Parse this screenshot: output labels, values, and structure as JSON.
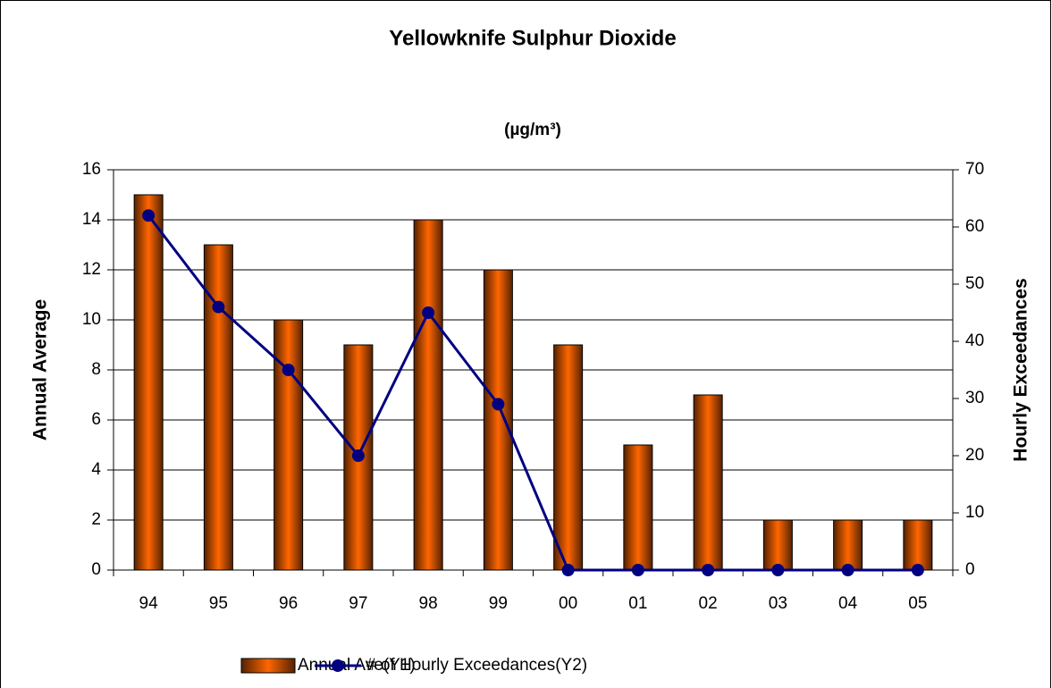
{
  "chart_data": {
    "type": "bar_line",
    "title": "Yellowknife Sulphur Dioxide",
    "subtitle": "(µg/m³)",
    "ylabel": "Annual Average",
    "y2label": "Hourly Exceedances",
    "categories": [
      "94",
      "95",
      "96",
      "97",
      "98",
      "99",
      "00",
      "01",
      "02",
      "03",
      "04",
      "05"
    ],
    "series": [
      {
        "name": "Annual Ave(Y1)",
        "type": "bar",
        "color": "#ff6600",
        "axis": "y",
        "values": [
          15,
          13,
          10,
          9,
          14,
          12,
          9,
          5,
          7,
          2,
          2,
          2
        ]
      },
      {
        "name": "# of Hourly Exceedances(Y2)",
        "type": "line",
        "color": "#000080",
        "axis": "y2",
        "values": [
          62,
          46,
          35,
          20,
          45,
          29,
          0,
          0,
          0,
          0,
          0,
          0
        ]
      }
    ],
    "ylim": [
      0,
      16
    ],
    "yticks": [
      0,
      2,
      4,
      6,
      8,
      10,
      12,
      14,
      16
    ],
    "y2lim": [
      0,
      70
    ],
    "y2ticks": [
      0,
      10,
      20,
      30,
      40,
      50,
      60,
      70
    ],
    "grid": true,
    "legend": "bottom"
  }
}
